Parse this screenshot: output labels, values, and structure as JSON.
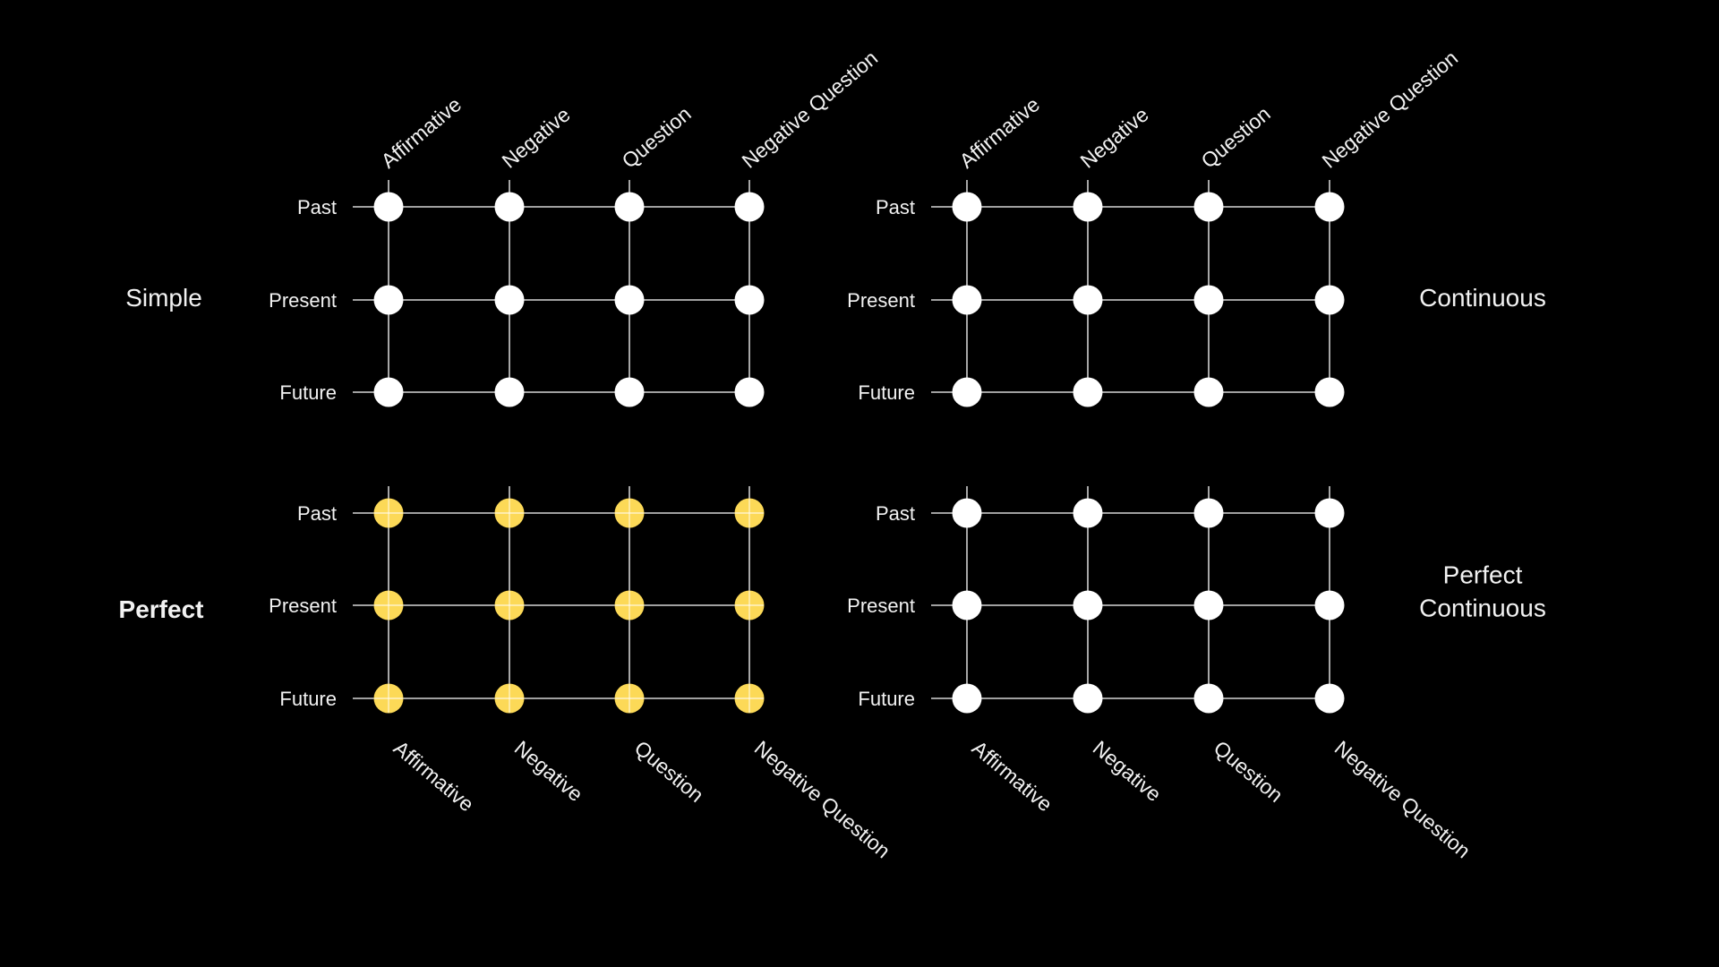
{
  "colors": {
    "background": "#000000",
    "line": "#ffffff",
    "node_default": "#ffffff",
    "node_highlight": "#fcd957",
    "text": "#f2f2f2"
  },
  "panels": [
    {
      "key": "simple",
      "group_label": [
        "Simple"
      ],
      "group_label_bold": false,
      "group_label_side": "left",
      "rows": [
        "Past",
        "Present",
        "Future"
      ],
      "columns": [
        "Affirmative",
        "Negative",
        "Question",
        "Negative Question"
      ],
      "column_labels_position": "top",
      "highlighted": false
    },
    {
      "key": "continuous",
      "group_label": [
        "Continuous"
      ],
      "group_label_bold": false,
      "group_label_side": "right",
      "rows": [
        "Past",
        "Present",
        "Future"
      ],
      "columns": [
        "Affirmative",
        "Negative",
        "Question",
        "Negative Question"
      ],
      "column_labels_position": "top",
      "highlighted": false
    },
    {
      "key": "perfect",
      "group_label": [
        "Perfect"
      ],
      "group_label_bold": true,
      "group_label_side": "left",
      "rows": [
        "Past",
        "Present",
        "Future"
      ],
      "columns": [
        "Affirmative",
        "Negative",
        "Question",
        "Negative Question"
      ],
      "column_labels_position": "bottom",
      "highlighted": true
    },
    {
      "key": "perfect-continuous",
      "group_label": [
        "Perfect",
        "Continuous"
      ],
      "group_label_bold": false,
      "group_label_side": "right",
      "rows": [
        "Past",
        "Present",
        "Future"
      ],
      "columns": [
        "Affirmative",
        "Negative",
        "Question",
        "Negative Question"
      ],
      "column_labels_position": "bottom",
      "highlighted": false
    }
  ]
}
